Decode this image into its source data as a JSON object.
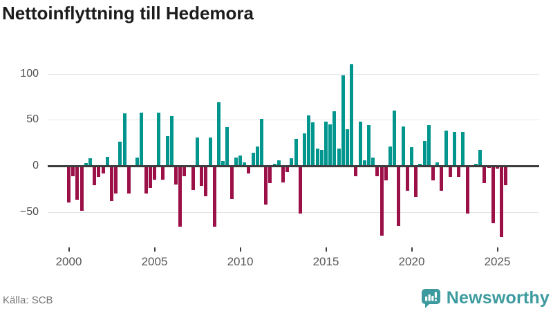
{
  "title": "Nettoinflyttning till Hedemora",
  "source": "Källa: SCB",
  "brand": {
    "name": "Newsworthy"
  },
  "colors": {
    "positive": "#00968e",
    "negative": "#9c1048",
    "grid": "#e3e3e3",
    "zero_line": "#3c3c3c",
    "axis_text": "#565656",
    "source_text": "#767676",
    "brand_teal": "#3d9b9f",
    "title_text": "#1c1c1c"
  },
  "chart_data": {
    "type": "bar",
    "title": "Nettoinflyttning till Hedemora",
    "xlabel": "",
    "ylabel": "",
    "frequency": "quarterly",
    "start_period": "2000 Q1",
    "end_period": "2025 Q3",
    "x_tick_labels": [
      "2000",
      "2005",
      "2010",
      "2015",
      "2020",
      "2025"
    ],
    "x_tick_years": [
      2000,
      2005,
      2010,
      2015,
      2020,
      2025
    ],
    "y_ticks": [
      100,
      50,
      0,
      -50
    ],
    "y_tick_labels": [
      "100",
      "50",
      "0",
      "−50"
    ],
    "ylim": [
      -85,
      118
    ],
    "grid": true,
    "legend": false,
    "series": [
      {
        "name": "Nettoinflyttning",
        "values": [
          -40,
          -11,
          -37,
          -49,
          3,
          8,
          -21,
          -12,
          -8,
          10,
          -38,
          -30,
          26,
          57,
          -30,
          0,
          9,
          58,
          -30,
          -24,
          -15,
          58,
          -15,
          32,
          54,
          -20,
          -66,
          -11,
          0,
          -26,
          31,
          -22,
          -33,
          31,
          -66,
          69,
          5,
          42,
          -36,
          9,
          11,
          4,
          -8,
          14,
          21,
          51,
          -42,
          -19,
          2,
          6,
          -18,
          -7,
          8,
          29,
          -52,
          35,
          55,
          47,
          19,
          17,
          48,
          45,
          59,
          19,
          98,
          40,
          110,
          -11,
          48,
          6,
          44,
          9,
          -11,
          -76,
          -16,
          21,
          60,
          -65,
          43,
          -27,
          20,
          -34,
          2,
          27,
          44,
          -16,
          4,
          -27,
          38,
          -12,
          37,
          -12,
          37,
          -52,
          0,
          2,
          17,
          -19,
          -2,
          -62,
          -3,
          -77,
          -21
        ]
      }
    ]
  }
}
